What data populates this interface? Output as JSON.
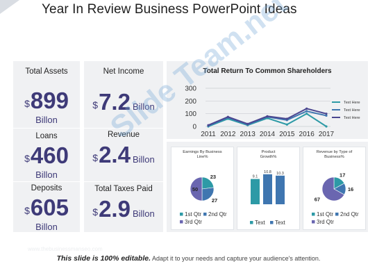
{
  "slide": {
    "title": "Year In Review Business PowerPoint Ideas",
    "footer_bold": "This slide is 100% editable.",
    "footer_text": " Adapt it to your needs and capture your audience's attention.",
    "faint_text": "www.thebusinessmanseo.com",
    "watermark": "Slide Team.net"
  },
  "metrics": {
    "total_assets": {
      "label": "Total Assets",
      "currency": "$",
      "value": "899",
      "sub": "Billon"
    },
    "net_income": {
      "label": "Net Income",
      "currency": "$",
      "value": "7.2",
      "unit": "Billon"
    },
    "loans": {
      "label": "Loans",
      "currency": "$",
      "value": "460",
      "sub": "Billon"
    },
    "revenue": {
      "label": "Revenue",
      "currency": "$",
      "value": "2.4",
      "unit": "Billon"
    },
    "deposits": {
      "label": "Deposits",
      "currency": "$",
      "value": "605",
      "sub": "Billon"
    },
    "total_taxes": {
      "label": "Total Taxes Paid",
      "currency": "$",
      "value": "2.9",
      "unit": "Billon"
    }
  },
  "colors": {
    "navy": "#3e3a78",
    "purple": "#6a66b0",
    "teal": "#2d9aa6",
    "blue": "#3f76b0",
    "card": "#f0f1f3"
  },
  "chart_data": [
    {
      "type": "line",
      "title": "Total Return To Common Shareholders",
      "x": [
        "2011",
        "2012",
        "2013",
        "2014",
        "2015",
        "2016",
        "2017"
      ],
      "yticks": [
        "300",
        "200",
        "100",
        "0"
      ],
      "ylim": [
        0,
        300
      ],
      "grid": true,
      "legend_placement": "right",
      "series": [
        {
          "name": "Text Here",
          "color": "#2d9aa6",
          "values": [
            0,
            60,
            10,
            65,
            15,
            100,
            0
          ]
        },
        {
          "name": "Text Here",
          "color": "#3f76b0",
          "values": [
            5,
            70,
            15,
            75,
            50,
            120,
            85
          ]
        },
        {
          "name": "Text Here",
          "color": "#4a4690",
          "values": [
            10,
            75,
            20,
            80,
            60,
            140,
            100
          ]
        }
      ]
    },
    {
      "type": "pie",
      "title": "Earnings By Business Line%",
      "categories": [
        "1st Qtr",
        "2nd Qtr",
        "3rd Qtr"
      ],
      "values": [
        23,
        27,
        50
      ],
      "colors": [
        "#2d9aa6",
        "#3f76b0",
        "#6a66b0"
      ]
    },
    {
      "type": "bar",
      "title": "Product Growth%",
      "categories": [
        "Text",
        "Text",
        "Text"
      ],
      "values": [
        9.1,
        10.8,
        10.3
      ],
      "data_labels": [
        "9.1",
        "10.8",
        "10.3"
      ],
      "legend": [
        "Text",
        "Text"
      ],
      "colors": [
        "#2d9aa6",
        "#3f76b0",
        "#3f76b0"
      ],
      "ylim": [
        0,
        11
      ]
    },
    {
      "type": "pie",
      "title": "Revenue by Type of Business%",
      "categories": [
        "1st Qtr",
        "2nd Qtr",
        "3rd Qtr"
      ],
      "values": [
        17,
        16,
        67
      ],
      "colors": [
        "#2d9aa6",
        "#3f76b0",
        "#6a66b0"
      ]
    }
  ]
}
